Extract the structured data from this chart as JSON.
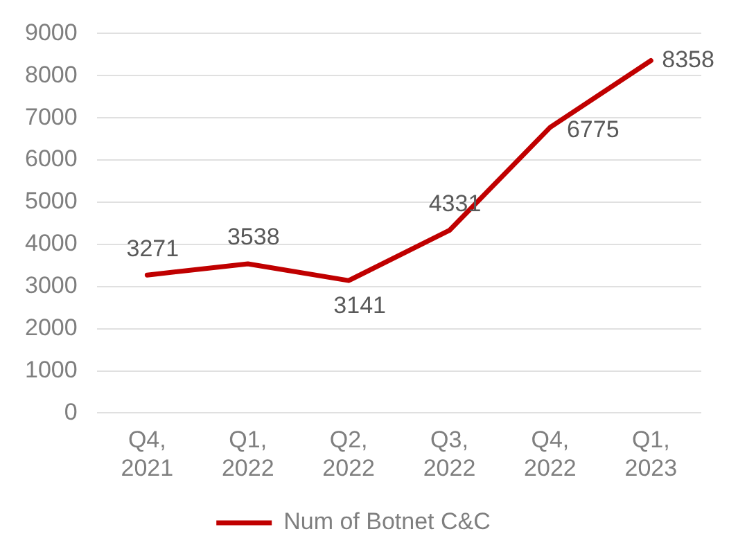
{
  "chart_data": {
    "type": "line",
    "categories": [
      "Q4, 2021",
      "Q1, 2022",
      "Q2, 2022",
      "Q3, 2022",
      "Q4, 2022",
      "Q1, 2023"
    ],
    "series": [
      {
        "name": "Num of Botnet C&C",
        "color": "#c00000",
        "values": [
          3271,
          3538,
          3141,
          4331,
          6775,
          8358
        ]
      }
    ],
    "ylim": [
      0,
      9000
    ],
    "yticks": [
      0,
      1000,
      2000,
      3000,
      4000,
      5000,
      6000,
      7000,
      8000,
      9000
    ],
    "grid": "y",
    "legend": "bottom",
    "data_labels": true,
    "marker": "none",
    "line_style": "solid"
  }
}
